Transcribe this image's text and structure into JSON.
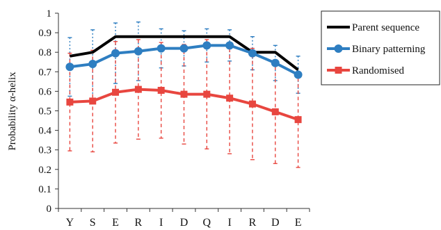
{
  "chart_data": {
    "type": "line",
    "categories": [
      "Y",
      "S",
      "E",
      "R",
      "I",
      "D",
      "Q",
      "I",
      "R",
      "D",
      "E"
    ],
    "ylabel": "Probability α-helix",
    "ylim": [
      0,
      1
    ],
    "yticks": [
      0,
      0.1,
      0.2,
      0.3,
      0.4,
      0.5,
      0.6,
      0.7,
      0.8,
      0.9,
      1
    ],
    "ytick_labels": [
      "0",
      "0.1",
      "0.2",
      "0.3",
      "0.4",
      "0.5",
      "0.6",
      "0.7",
      "0.8",
      "0.9",
      "1"
    ],
    "grid": false,
    "legend_position": "right",
    "series": [
      {
        "name": "Parent sequence",
        "color": "#000000",
        "marker": "none",
        "values": [
          0.78,
          0.8,
          0.88,
          0.88,
          0.88,
          0.88,
          0.88,
          0.88,
          0.8,
          0.8,
          0.71
        ]
      },
      {
        "name": "Binary patterning",
        "color": "#2e7ec1",
        "marker": "circle",
        "error_style": "dotted",
        "values": [
          0.725,
          0.74,
          0.795,
          0.805,
          0.82,
          0.82,
          0.835,
          0.835,
          0.795,
          0.745,
          0.685
        ],
        "errors": [
          0.15,
          0.175,
          0.155,
          0.15,
          0.1,
          0.09,
          0.085,
          0.08,
          0.085,
          0.09,
          0.095
        ]
      },
      {
        "name": "Randomised",
        "color": "#e8463f",
        "marker": "square",
        "error_style": "dashed",
        "values": [
          0.545,
          0.55,
          0.595,
          0.61,
          0.605,
          0.585,
          0.585,
          0.565,
          0.535,
          0.495,
          0.455
        ],
        "errors": [
          0.25,
          0.26,
          0.26,
          0.255,
          0.245,
          0.255,
          0.28,
          0.285,
          0.285,
          0.265,
          0.245
        ]
      }
    ]
  }
}
